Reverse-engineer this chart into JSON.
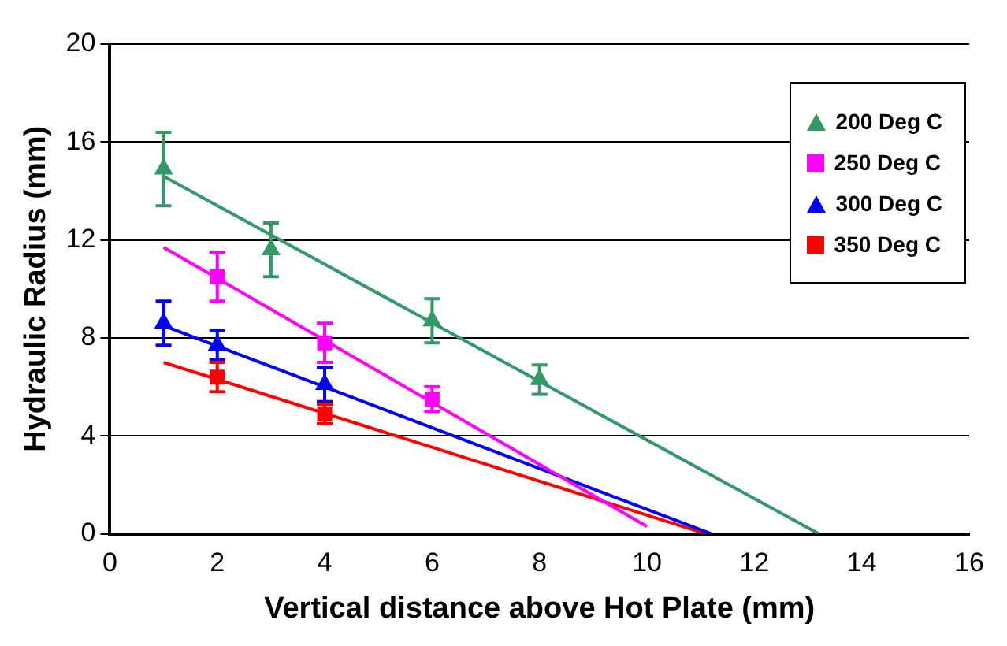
{
  "chart_data": {
    "type": "scatter",
    "xlabel": "Vertical distance above Hot Plate (mm)",
    "ylabel": "Hydraulic Radius (mm)",
    "xlim": [
      0,
      16
    ],
    "xticks": [
      0,
      2,
      4,
      6,
      8,
      10,
      12,
      14,
      16
    ],
    "ylim": [
      0,
      20
    ],
    "yticks": [
      0,
      4,
      8,
      12,
      16,
      20
    ],
    "grid": "y",
    "legend": "top right",
    "series": [
      {
        "name": "200 Deg C",
        "marker": "triangle",
        "color": "#339966",
        "x": [
          1,
          3,
          6,
          8
        ],
        "values": [
          14.9,
          11.6,
          8.7,
          6.3
        ],
        "errors": [
          1.5,
          1.1,
          0.9,
          0.6
        ]
      },
      {
        "name": "250 Deg C",
        "marker": "square",
        "color": "#ff00ff",
        "x": [
          2,
          4,
          6
        ],
        "values": [
          10.5,
          7.8,
          5.5
        ],
        "errors": [
          1.0,
          0.8,
          0.5
        ]
      },
      {
        "name": "300 Deg C",
        "marker": "triangle",
        "color": "#0000ff",
        "x": [
          1,
          2,
          4
        ],
        "values": [
          8.6,
          7.7,
          6.1
        ],
        "errors": [
          0.9,
          0.6,
          0.7
        ]
      },
      {
        "name": "350 Deg C",
        "marker": "square",
        "color": "#ff0000",
        "x": [
          2,
          4
        ],
        "values": [
          6.4,
          4.9
        ],
        "errors": [
          0.6,
          0.4
        ]
      },
      {
        "type": "line",
        "marker": "none",
        "color": "#339966",
        "x": [
          1,
          13.2
        ],
        "values": [
          14.6,
          0
        ]
      },
      {
        "type": "line",
        "marker": "none",
        "color": "#ff00ff",
        "x": [
          1,
          10
        ],
        "values": [
          11.7,
          0.3
        ]
      },
      {
        "type": "line",
        "marker": "none",
        "color": "#0000ff",
        "x": [
          1,
          11.2
        ],
        "values": [
          8.5,
          0
        ]
      },
      {
        "type": "line",
        "marker": "none",
        "color": "#ff0000",
        "x": [
          1,
          11.1
        ],
        "values": [
          7.0,
          0
        ]
      }
    ]
  }
}
